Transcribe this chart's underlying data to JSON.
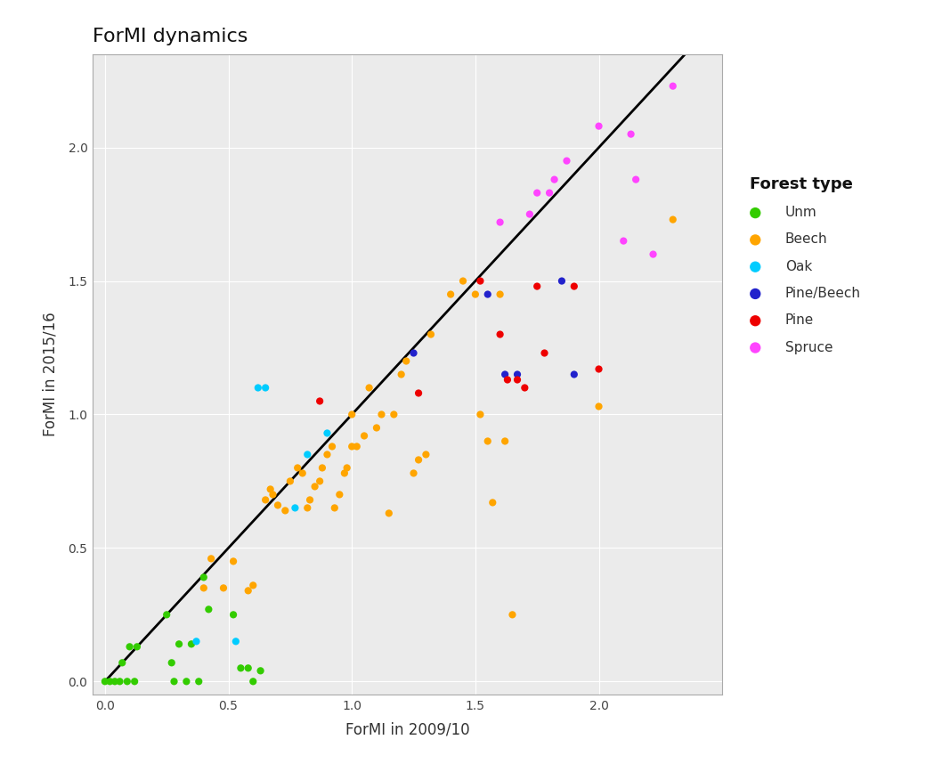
{
  "title": "ForMI dynamics",
  "xlabel": "ForMI in 2009/10",
  "ylabel": "ForMI in 2015/16",
  "xlim": [
    -0.05,
    2.5
  ],
  "ylim": [
    -0.05,
    2.35
  ],
  "xticks": [
    0.0,
    0.5,
    1.0,
    1.5,
    2.0
  ],
  "yticks": [
    0.0,
    0.5,
    1.0,
    1.5,
    2.0
  ],
  "legend_title": "Forest type",
  "forest_types": [
    {
      "name": "Unm",
      "color": "#33CC00",
      "x": [
        0.0,
        0.02,
        0.04,
        0.06,
        0.07,
        0.09,
        0.1,
        0.12,
        0.13,
        0.25,
        0.27,
        0.28,
        0.3,
        0.33,
        0.35,
        0.38,
        0.4,
        0.42,
        0.52,
        0.55,
        0.58,
        0.6,
        0.63
      ],
      "y": [
        0.0,
        0.0,
        0.0,
        0.0,
        0.07,
        0.0,
        0.13,
        0.0,
        0.13,
        0.25,
        0.07,
        0.0,
        0.14,
        0.0,
        0.14,
        0.0,
        0.39,
        0.27,
        0.25,
        0.05,
        0.05,
        0.0,
        0.04
      ]
    },
    {
      "name": "Beech",
      "color": "#FFA500",
      "x": [
        0.4,
        0.43,
        0.48,
        0.52,
        0.58,
        0.6,
        0.65,
        0.67,
        0.68,
        0.7,
        0.73,
        0.75,
        0.78,
        0.8,
        0.82,
        0.83,
        0.85,
        0.87,
        0.88,
        0.9,
        0.92,
        0.93,
        0.95,
        0.97,
        0.98,
        1.0,
        1.0,
        1.02,
        1.05,
        1.07,
        1.1,
        1.12,
        1.15,
        1.17,
        1.2,
        1.22,
        1.25,
        1.27,
        1.3,
        1.32,
        1.4,
        1.45,
        1.5,
        1.52,
        1.55,
        1.57,
        1.6,
        1.62,
        1.65,
        2.0,
        2.3
      ],
      "y": [
        0.35,
        0.46,
        0.35,
        0.45,
        0.34,
        0.36,
        0.68,
        0.72,
        0.7,
        0.66,
        0.64,
        0.75,
        0.8,
        0.78,
        0.65,
        0.68,
        0.73,
        0.75,
        0.8,
        0.85,
        0.88,
        0.65,
        0.7,
        0.78,
        0.8,
        1.0,
        0.88,
        0.88,
        0.92,
        1.1,
        0.95,
        1.0,
        0.63,
        1.0,
        1.15,
        1.2,
        0.78,
        0.83,
        0.85,
        1.3,
        1.45,
        1.5,
        1.45,
        1.0,
        0.9,
        0.67,
        1.45,
        0.9,
        0.25,
        1.03,
        1.73
      ]
    },
    {
      "name": "Oak",
      "color": "#00CCFF",
      "x": [
        0.37,
        0.53,
        0.62,
        0.65,
        0.77,
        0.82,
        0.9
      ],
      "y": [
        0.15,
        0.15,
        1.1,
        1.1,
        0.65,
        0.85,
        0.93
      ]
    },
    {
      "name": "Pine/Beech",
      "color": "#2222CC",
      "x": [
        1.25,
        1.55,
        1.62,
        1.67,
        1.85,
        1.9
      ],
      "y": [
        1.23,
        1.45,
        1.15,
        1.15,
        1.5,
        1.15
      ]
    },
    {
      "name": "Pine",
      "color": "#EE0000",
      "x": [
        0.87,
        1.27,
        1.52,
        1.6,
        1.63,
        1.67,
        1.7,
        1.75,
        1.78,
        1.9,
        2.0
      ],
      "y": [
        1.05,
        1.08,
        1.5,
        1.3,
        1.13,
        1.13,
        1.1,
        1.48,
        1.23,
        1.48,
        1.17
      ]
    },
    {
      "name": "Spruce",
      "color": "#FF44FF",
      "x": [
        1.6,
        1.72,
        1.75,
        1.8,
        1.82,
        1.87,
        2.0,
        2.1,
        2.13,
        2.15,
        2.22,
        2.3
      ],
      "y": [
        1.72,
        1.75,
        1.83,
        1.83,
        1.88,
        1.95,
        2.08,
        1.65,
        2.05,
        1.88,
        1.6,
        2.23
      ]
    }
  ],
  "panel_background": "#ebebeb",
  "panel_border_color": "#aaaaaa",
  "fig_background": "#ffffff",
  "grid_color": "#ffffff",
  "diagonal_line_color": "#000000",
  "title_fontsize": 16,
  "axis_label_fontsize": 12,
  "tick_fontsize": 10,
  "legend_title_fontsize": 13,
  "legend_fontsize": 11,
  "marker_size": 35,
  "diagonal_linewidth": 2.0
}
